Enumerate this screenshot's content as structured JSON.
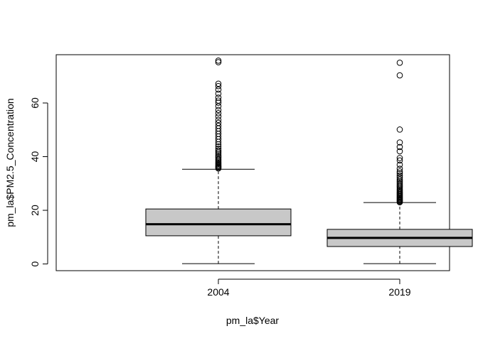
{
  "chart_data": {
    "type": "boxplot",
    "title": "",
    "xlabel": "pm_la$Year",
    "ylabel": "pm_la$PM2.5_Concentration",
    "ylim": [
      -2.5,
      78
    ],
    "y_ticks": [
      0,
      20,
      40,
      60
    ],
    "grid": false,
    "box_fill": "#c8c8c8",
    "categories": [
      "2004",
      "2019"
    ],
    "boxes": [
      {
        "category": "2004",
        "min": 0.1,
        "q1": 10.5,
        "median": 14.8,
        "q3": 20.5,
        "max": 35.3,
        "outliers": [
          35.6,
          35.9,
          36.2,
          36.5,
          36.9,
          37.3,
          37.7,
          38.1,
          38.6,
          39.0,
          39.5,
          40.0,
          40.5,
          41.1,
          41.7,
          42.3,
          43.0,
          43.8,
          44.6,
          45.5,
          46.5,
          47.5,
          48.5,
          49.5,
          50.5,
          51.5,
          52.6,
          53.7,
          55.0,
          56.2,
          57.4,
          58.8,
          60.1,
          60.9,
          62.0,
          63.5,
          65.0,
          66.3,
          67.2,
          75.2,
          75.8
        ]
      },
      {
        "category": "2019",
        "min": 0.1,
        "q1": 6.5,
        "median": 9.7,
        "q3": 12.9,
        "max": 22.9,
        "outliers": [
          23.0,
          23.3,
          23.6,
          23.9,
          24.2,
          24.5,
          24.8,
          25.2,
          25.6,
          26.0,
          26.4,
          26.8,
          27.2,
          27.6,
          28.0,
          28.5,
          29.0,
          29.5,
          30.0,
          30.5,
          31.0,
          31.6,
          32.3,
          33.0,
          33.8,
          34.5,
          35.5,
          37.0,
          38.6,
          39.5,
          42.0,
          43.6,
          45.3,
          50.1,
          70.3,
          75.0
        ]
      }
    ]
  }
}
